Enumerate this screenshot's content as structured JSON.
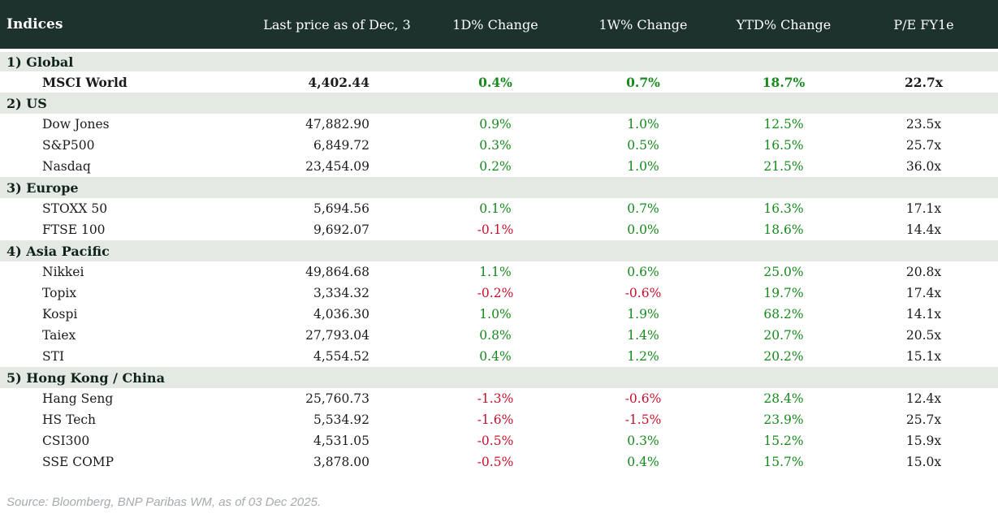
{
  "table": {
    "columns": [
      "Indices",
      "Last price as of Dec, 3",
      "1D% Change",
      "1W% Change",
      "YTD% Change",
      "P/E FY1e"
    ],
    "sections": [
      {
        "label": "1) Global",
        "rows": [
          {
            "name": "MSCI World",
            "price": "4,402.44",
            "d1": "0.4%",
            "w1": "0.7%",
            "ytd": "18.7%",
            "pe": "22.7x",
            "bold": true
          }
        ]
      },
      {
        "label": "2) US",
        "rows": [
          {
            "name": "Dow Jones",
            "price": "47,882.90",
            "d1": "0.9%",
            "w1": "1.0%",
            "ytd": "12.5%",
            "pe": "23.5x"
          },
          {
            "name": "S&P500",
            "price": "6,849.72",
            "d1": "0.3%",
            "w1": "0.5%",
            "ytd": "16.5%",
            "pe": "25.7x"
          },
          {
            "name": "Nasdaq",
            "price": "23,454.09",
            "d1": "0.2%",
            "w1": "1.0%",
            "ytd": "21.5%",
            "pe": "36.0x"
          }
        ]
      },
      {
        "label": "3) Europe",
        "rows": [
          {
            "name": "STOXX 50",
            "price": "5,694.56",
            "d1": "0.1%",
            "w1": "0.7%",
            "ytd": "16.3%",
            "pe": "17.1x"
          },
          {
            "name": "FTSE 100",
            "price": "9,692.07",
            "d1": "-0.1%",
            "w1": "0.0%",
            "ytd": "18.6%",
            "pe": "14.4x"
          }
        ]
      },
      {
        "label": "4) Asia Pacific",
        "rows": [
          {
            "name": "Nikkei",
            "price": "49,864.68",
            "d1": "1.1%",
            "w1": "0.6%",
            "ytd": "25.0%",
            "pe": "20.8x"
          },
          {
            "name": "Topix",
            "price": "3,334.32",
            "d1": "-0.2%",
            "w1": "-0.6%",
            "ytd": "19.7%",
            "pe": "17.4x"
          },
          {
            "name": "Kospi",
            "price": "4,036.30",
            "d1": "1.0%",
            "w1": "1.9%",
            "ytd": "68.2%",
            "pe": "14.1x"
          },
          {
            "name": "Taiex",
            "price": "27,793.04",
            "d1": "0.8%",
            "w1": "1.4%",
            "ytd": "20.7%",
            "pe": "20.5x"
          },
          {
            "name": "STI",
            "price": "4,554.52",
            "d1": "0.4%",
            "w1": "1.2%",
            "ytd": "20.2%",
            "pe": "15.1x"
          }
        ]
      },
      {
        "label": "5) Hong Kong / China",
        "rows": [
          {
            "name": "Hang Seng",
            "price": "25,760.73",
            "d1": "-1.3%",
            "w1": "-0.6%",
            "ytd": "28.4%",
            "pe": "12.4x"
          },
          {
            "name": "HS Tech",
            "price": "5,534.92",
            "d1": "-1.6%",
            "w1": "-1.5%",
            "ytd": "23.9%",
            "pe": "25.7x"
          },
          {
            "name": "CSI300",
            "price": "4,531.05",
            "d1": "-0.5%",
            "w1": "0.3%",
            "ytd": "15.2%",
            "pe": "15.9x"
          },
          {
            "name": "SSE COMP",
            "price": "3,878.00",
            "d1": "-0.5%",
            "w1": "0.4%",
            "ytd": "15.7%",
            "pe": "15.0x"
          }
        ]
      }
    ]
  },
  "footer": {
    "source": "Source: Bloomberg, BNP Paribas WM, as of 03 Dec 2025."
  },
  "colors": {
    "header_background": "#1d322d",
    "section_row_background": "#e4e9e4",
    "positive_change": "#178a1e",
    "negative_change": "#c4122e",
    "body_text": "#1b1b1b",
    "footer_text": "#a6abae"
  }
}
